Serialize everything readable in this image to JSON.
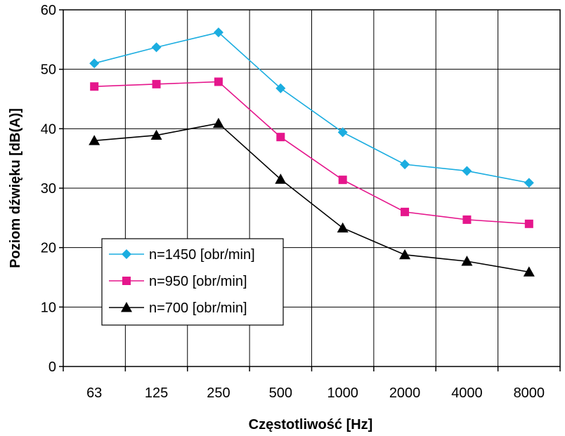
{
  "chart_data": {
    "type": "line",
    "title": "",
    "xlabel": "Częstotliwość [Hz]",
    "ylabel": "Poziom dźwięku [dB(A)]",
    "categories": [
      "63",
      "125",
      "250",
      "500",
      "1000",
      "2000",
      "4000",
      "8000"
    ],
    "ylim": [
      0,
      60
    ],
    "yticks": [
      0,
      10,
      20,
      30,
      40,
      50,
      60
    ],
    "grid": true,
    "legend_position": "bottom-left",
    "series": [
      {
        "name": "n=1450 [obr/min]",
        "color": "#1BADE0",
        "marker": "diamond",
        "values": [
          51.0,
          53.7,
          56.2,
          46.8,
          39.4,
          34.0,
          32.9,
          30.9
        ]
      },
      {
        "name": "n=950 [obr/min]",
        "color": "#E5168C",
        "marker": "square",
        "values": [
          47.1,
          47.5,
          47.9,
          38.6,
          31.4,
          26.0,
          24.7,
          24.0
        ]
      },
      {
        "name": "n=700 [obr/min]",
        "color": "#000000",
        "marker": "triangle",
        "values": [
          38.0,
          38.9,
          40.9,
          31.5,
          23.3,
          18.8,
          17.7,
          15.9
        ]
      }
    ]
  }
}
